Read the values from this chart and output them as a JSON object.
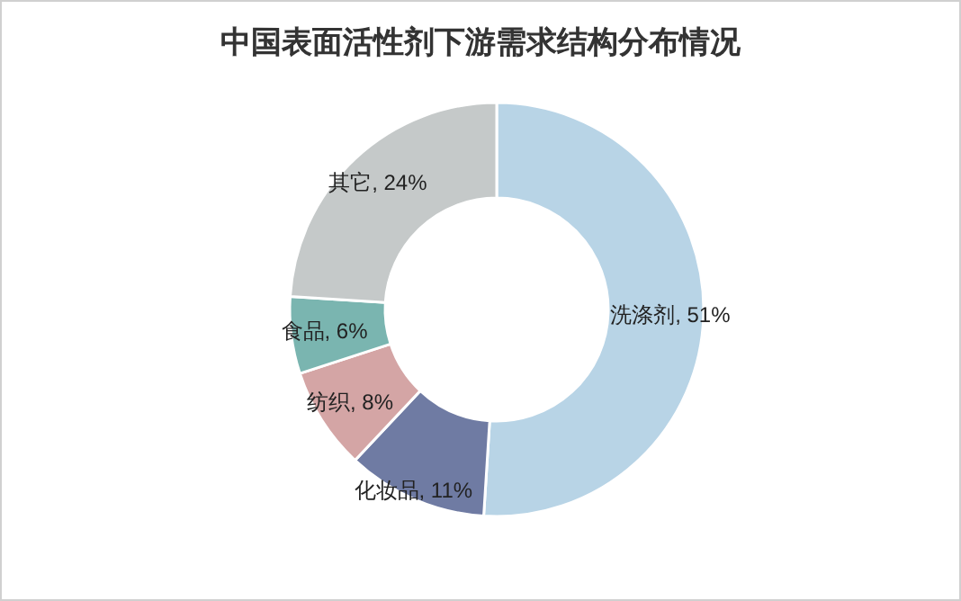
{
  "chart_data": {
    "type": "donut",
    "title": "中国表面活性剂下游需求结构分布情况",
    "categories": [
      "洗涤剂",
      "化妆品",
      "纺织",
      "食品",
      "其它"
    ],
    "values": [
      51,
      11,
      8,
      6,
      24
    ],
    "value_labels": [
      "51%",
      "11%",
      "8%",
      "6%",
      "24%"
    ],
    "colors": [
      "#b8d4e6",
      "#6f7ba3",
      "#d4a5a5",
      "#7ab5b0",
      "#c5c9c9"
    ]
  }
}
